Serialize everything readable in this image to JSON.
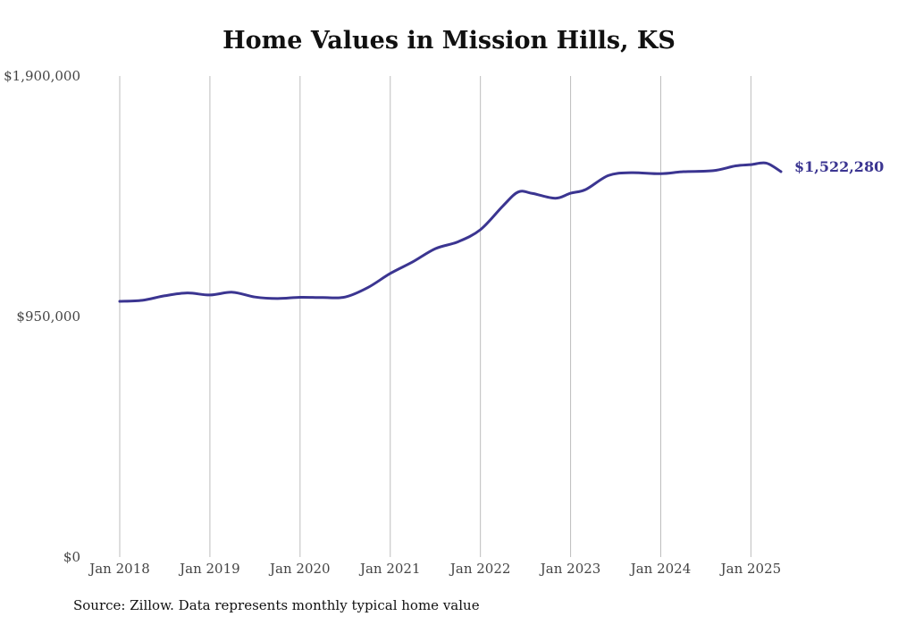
{
  "chart_data": {
    "type": "line",
    "title": "Home Values in Mission Hills, KS",
    "source": "Source: Zillow. Data represents monthly typical home value",
    "ylim": [
      0,
      1900000
    ],
    "y_ticks": [
      {
        "value": 0,
        "label": "$0"
      },
      {
        "value": 950000,
        "label": "$950,000"
      },
      {
        "value": 1900000,
        "label": "$1,900,000"
      }
    ],
    "x_ticks": [
      {
        "value": 2018.0,
        "label": "Jan 2018"
      },
      {
        "value": 2019.0,
        "label": "Jan 2019"
      },
      {
        "value": 2020.0,
        "label": "Jan 2020"
      },
      {
        "value": 2021.0,
        "label": "Jan 2021"
      },
      {
        "value": 2022.0,
        "label": "Jan 2022"
      },
      {
        "value": 2023.0,
        "label": "Jan 2023"
      },
      {
        "value": 2024.0,
        "label": "Jan 2024"
      },
      {
        "value": 2025.0,
        "label": "Jan 2025"
      }
    ],
    "xlim": [
      2018.0,
      2025.333
    ],
    "grid": "vertical",
    "line_color": "#3b3591",
    "end_label": "$1,522,280",
    "x": [
      2018.0,
      2018.25,
      2018.5,
      2018.75,
      2019.0,
      2019.25,
      2019.5,
      2019.75,
      2020.0,
      2020.25,
      2020.5,
      2020.75,
      2021.0,
      2021.25,
      2021.5,
      2021.75,
      2022.0,
      2022.25,
      2022.42,
      2022.58,
      2022.83,
      2023.0,
      2023.17,
      2023.42,
      2023.67,
      2024.0,
      2024.25,
      2024.58,
      2024.83,
      2025.0,
      2025.17,
      2025.333
    ],
    "values": [
      1010000,
      1014000,
      1032000,
      1043000,
      1035000,
      1046000,
      1027000,
      1021000,
      1026000,
      1025000,
      1027000,
      1064000,
      1120000,
      1166000,
      1218000,
      1245000,
      1293000,
      1387000,
      1442000,
      1436000,
      1417000,
      1437000,
      1452000,
      1507000,
      1518000,
      1514000,
      1522000,
      1526000,
      1545000,
      1550000,
      1556000,
      1522280
    ]
  }
}
